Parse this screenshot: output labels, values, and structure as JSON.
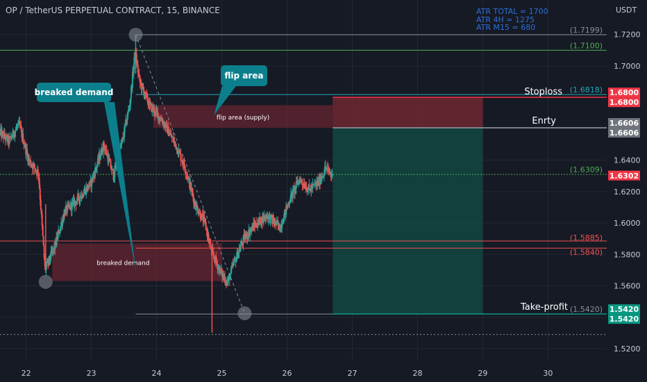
{
  "header": {
    "title": "OP / TetherUS PERPETUAL CONTRACT, 15, BINANCE",
    "currency": "USDT"
  },
  "atr": {
    "lines": [
      "ATR TOTAL = 1700",
      "ATR 4H = 1275",
      "ATR M15 = 680"
    ]
  },
  "colors": {
    "background": "#161a25",
    "up": "#26a69a",
    "down": "#ef5350",
    "text": "#c9ccd4",
    "atr_text": "#2c6fd8",
    "callout": "#0c7f8c",
    "stop_zone": "#7a2a33",
    "profit_zone": "#124a43"
  },
  "callouts": {
    "breaked_demand": "breaked demand",
    "flip_area": "flip area"
  },
  "chart_data": {
    "type": "candlestick",
    "symbol": "OP / TetherUS PERPETUAL CONTRACT",
    "interval": "15",
    "exchange": "BINANCE",
    "x_axis": {
      "ticks": [
        "22",
        "23",
        "24",
        "25",
        "26",
        "27",
        "28",
        "29",
        "30"
      ],
      "range": [
        21.6,
        30.9
      ]
    },
    "y_axis": {
      "ticks": [
        "1.5200",
        "1.5400",
        "1.5600",
        "1.5800",
        "1.6000",
        "1.6200",
        "1.6400",
        "1.7000",
        "1.7200"
      ],
      "range": [
        1.512,
        1.742
      ],
      "unit": "USDT"
    },
    "price_path": [
      [
        21.6,
        1.658
      ],
      [
        21.75,
        1.652
      ],
      [
        21.9,
        1.663
      ],
      [
        22.05,
        1.64
      ],
      [
        22.2,
        1.632
      ],
      [
        22.3,
        1.57
      ],
      [
        22.45,
        1.585
      ],
      [
        22.6,
        1.607
      ],
      [
        22.8,
        1.615
      ],
      [
        23.0,
        1.625
      ],
      [
        23.2,
        1.65
      ],
      [
        23.35,
        1.63
      ],
      [
        23.5,
        1.655
      ],
      [
        23.6,
        1.676
      ],
      [
        23.68,
        1.709
      ],
      [
        23.75,
        1.69
      ],
      [
        23.9,
        1.675
      ],
      [
        24.1,
        1.665
      ],
      [
        24.3,
        1.65
      ],
      [
        24.45,
        1.635
      ],
      [
        24.6,
        1.612
      ],
      [
        24.75,
        1.6
      ],
      [
        24.85,
        1.582
      ],
      [
        25.0,
        1.568
      ],
      [
        25.1,
        1.562
      ],
      [
        25.2,
        1.575
      ],
      [
        25.35,
        1.59
      ],
      [
        25.5,
        1.598
      ],
      [
        25.7,
        1.605
      ],
      [
        25.9,
        1.597
      ],
      [
        26.05,
        1.615
      ],
      [
        26.2,
        1.628
      ],
      [
        26.35,
        1.621
      ],
      [
        26.5,
        1.626
      ],
      [
        26.6,
        1.635
      ],
      [
        26.7,
        1.63
      ]
    ],
    "horizontal_levels": [
      {
        "price": 1.7199,
        "label": "(1.7199)",
        "color": "#8a8f99"
      },
      {
        "price": 1.71,
        "label": "(1.7100)",
        "color": "#4caf50"
      },
      {
        "price": 1.6818,
        "label": "(1.6818)",
        "color": "#26a8b8"
      },
      {
        "price": 1.6309,
        "label": "(1.6309)",
        "color": "#4caf50"
      },
      {
        "price": 1.5885,
        "label": "(1.5885)",
        "color": "#ef5350"
      },
      {
        "price": 1.584,
        "label": "(1.5840)",
        "color": "#ef5350"
      },
      {
        "price": 1.542,
        "label": "(1.5420)",
        "color": "#8a8f99"
      }
    ],
    "price_tags": [
      {
        "price": 1.68,
        "text": "1.6800",
        "color": "#f23645"
      },
      {
        "price": 1.68,
        "text": "1.6800",
        "color": "#f23645"
      },
      {
        "price": 1.6606,
        "text": "1.6606",
        "color": "#6e737c"
      },
      {
        "price": 1.6606,
        "text": "1.6606",
        "color": "#6e737c"
      },
      {
        "price": 1.6302,
        "text": "1.6302",
        "color": "#f23645"
      },
      {
        "price": 1.542,
        "text": "1.5420",
        "color": "#089981"
      },
      {
        "price": 1.542,
        "text": "1.5420",
        "color": "#089981"
      }
    ],
    "position": {
      "entry": 1.6606,
      "stop": 1.68,
      "target": 1.542,
      "start": 26.7,
      "end": 29.0,
      "entry_label": "Enrty",
      "stop_label": "Stoploss",
      "target_label": "Take-profit"
    },
    "zones": [
      {
        "label": "flip area (supply)",
        "x0": 23.95,
        "x1": 26.7,
        "y0": 1.6606,
        "y1": 1.675
      },
      {
        "label": "breaked demand",
        "x0": 22.4,
        "x1": 25.0,
        "y0": 1.563,
        "y1": 1.587
      }
    ],
    "markers": [
      {
        "x": 23.68,
        "y": 1.7199
      },
      {
        "x": 22.3,
        "y": 1.5625
      },
      {
        "x": 25.35,
        "y": 1.5425
      }
    ]
  }
}
